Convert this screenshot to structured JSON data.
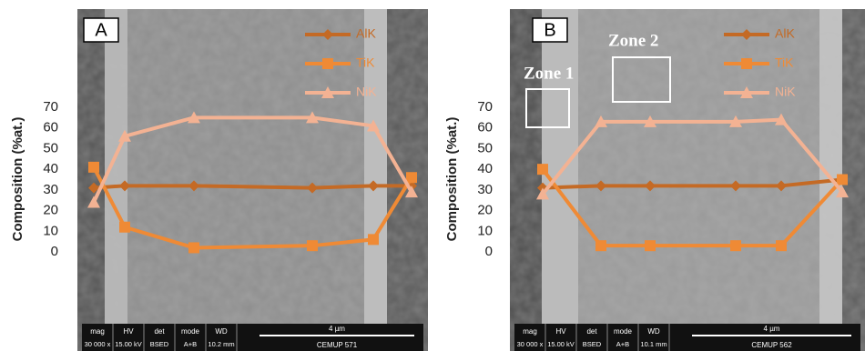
{
  "chart_data": [
    {
      "type": "line",
      "panel_label": "A",
      "y_label": "Composition (%at.)",
      "categories": [
        null,
        null,
        null,
        null,
        null,
        null
      ],
      "ylim": [
        0,
        70
      ],
      "yticks": [
        0,
        10,
        20,
        30,
        40,
        50,
        60,
        70
      ],
      "grid": false,
      "legend_position": "upper right",
      "series": [
        {
          "name": "AlK",
          "color": "#c46a25",
          "marker": "diamond",
          "values": [
            31,
            32,
            32,
            31,
            32,
            32
          ]
        },
        {
          "name": "TiK",
          "color": "#ef8a35",
          "marker": "square",
          "values": [
            41,
            12,
            2,
            3,
            6,
            36
          ]
        },
        {
          "name": "NiK",
          "color": "#f3b293",
          "marker": "triangle",
          "values": [
            24,
            56,
            65,
            65,
            61,
            29
          ]
        }
      ],
      "info_bar": {
        "headers": [
          "mag",
          "HV",
          "det",
          "mode",
          "WD"
        ],
        "values": [
          "30 000 x",
          "15.00 kV",
          "BSED",
          "A+B",
          "10.2 mm"
        ],
        "scale": "4 µm",
        "id": "CEMUP  571"
      }
    },
    {
      "type": "line",
      "panel_label": "B",
      "y_label": "Composition (%at.)",
      "categories": [
        null,
        null,
        null,
        null,
        null,
        null
      ],
      "ylim": [
        0,
        70
      ],
      "yticks": [
        0,
        10,
        20,
        30,
        40,
        50,
        60,
        70
      ],
      "grid": false,
      "legend_position": "upper right",
      "annotations": [
        "Zone 1",
        "Zone 2"
      ],
      "series": [
        {
          "name": "AlK",
          "color": "#c46a25",
          "marker": "diamond",
          "values": [
            31,
            32,
            32,
            32,
            32,
            35
          ]
        },
        {
          "name": "TiK",
          "color": "#ef8a35",
          "marker": "square",
          "values": [
            40,
            3,
            3,
            3,
            3,
            35
          ]
        },
        {
          "name": "NiK",
          "color": "#f3b293",
          "marker": "triangle",
          "values": [
            28,
            63,
            63,
            63,
            64,
            29
          ]
        }
      ],
      "info_bar": {
        "headers": [
          "mag",
          "HV",
          "det",
          "mode",
          "WD"
        ],
        "values": [
          "30 000 x",
          "15.00 kV",
          "BSED",
          "A+B",
          "10.1 mm"
        ],
        "scale": "4 µm",
        "id": "CEMUP  562"
      }
    }
  ]
}
